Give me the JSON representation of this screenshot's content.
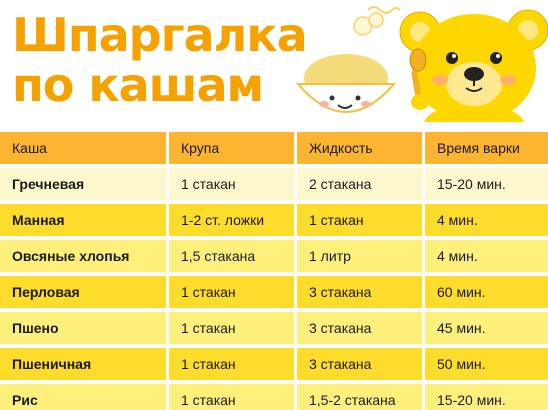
{
  "title": {
    "line1": "Шпаргалка",
    "line2": "по кашам"
  },
  "colors": {
    "title": "#f5a100",
    "header_row": "#fcb431",
    "row_light": "#fef07a",
    "row_dark": "#fddc2b",
    "bear": "#ffd700"
  },
  "table": {
    "headers": [
      "Каша",
      "Крупа",
      "Жидкость",
      "Время варки"
    ],
    "rows": [
      [
        "Гречневая",
        "1 стакан",
        "2 стакана",
        "15-20 мин."
      ],
      [
        "Манная",
        "1-2 ст. ложки",
        "1 стакан",
        "4 мин."
      ],
      [
        "Овсяные хлопья",
        "1,5 стакана",
        "1 литр",
        "4 мин."
      ],
      [
        "Перловая",
        "1 стакан",
        "3 стакана",
        "60 мин."
      ],
      [
        "Пшено",
        "1 стакан",
        "3 стакана",
        "45 мин."
      ],
      [
        "Пшеничная",
        "1 стакан",
        "3 стакана",
        "50 мин."
      ],
      [
        "Рис",
        "1 стакан",
        "1,5-2 стакана",
        "15-20 мин."
      ]
    ]
  }
}
